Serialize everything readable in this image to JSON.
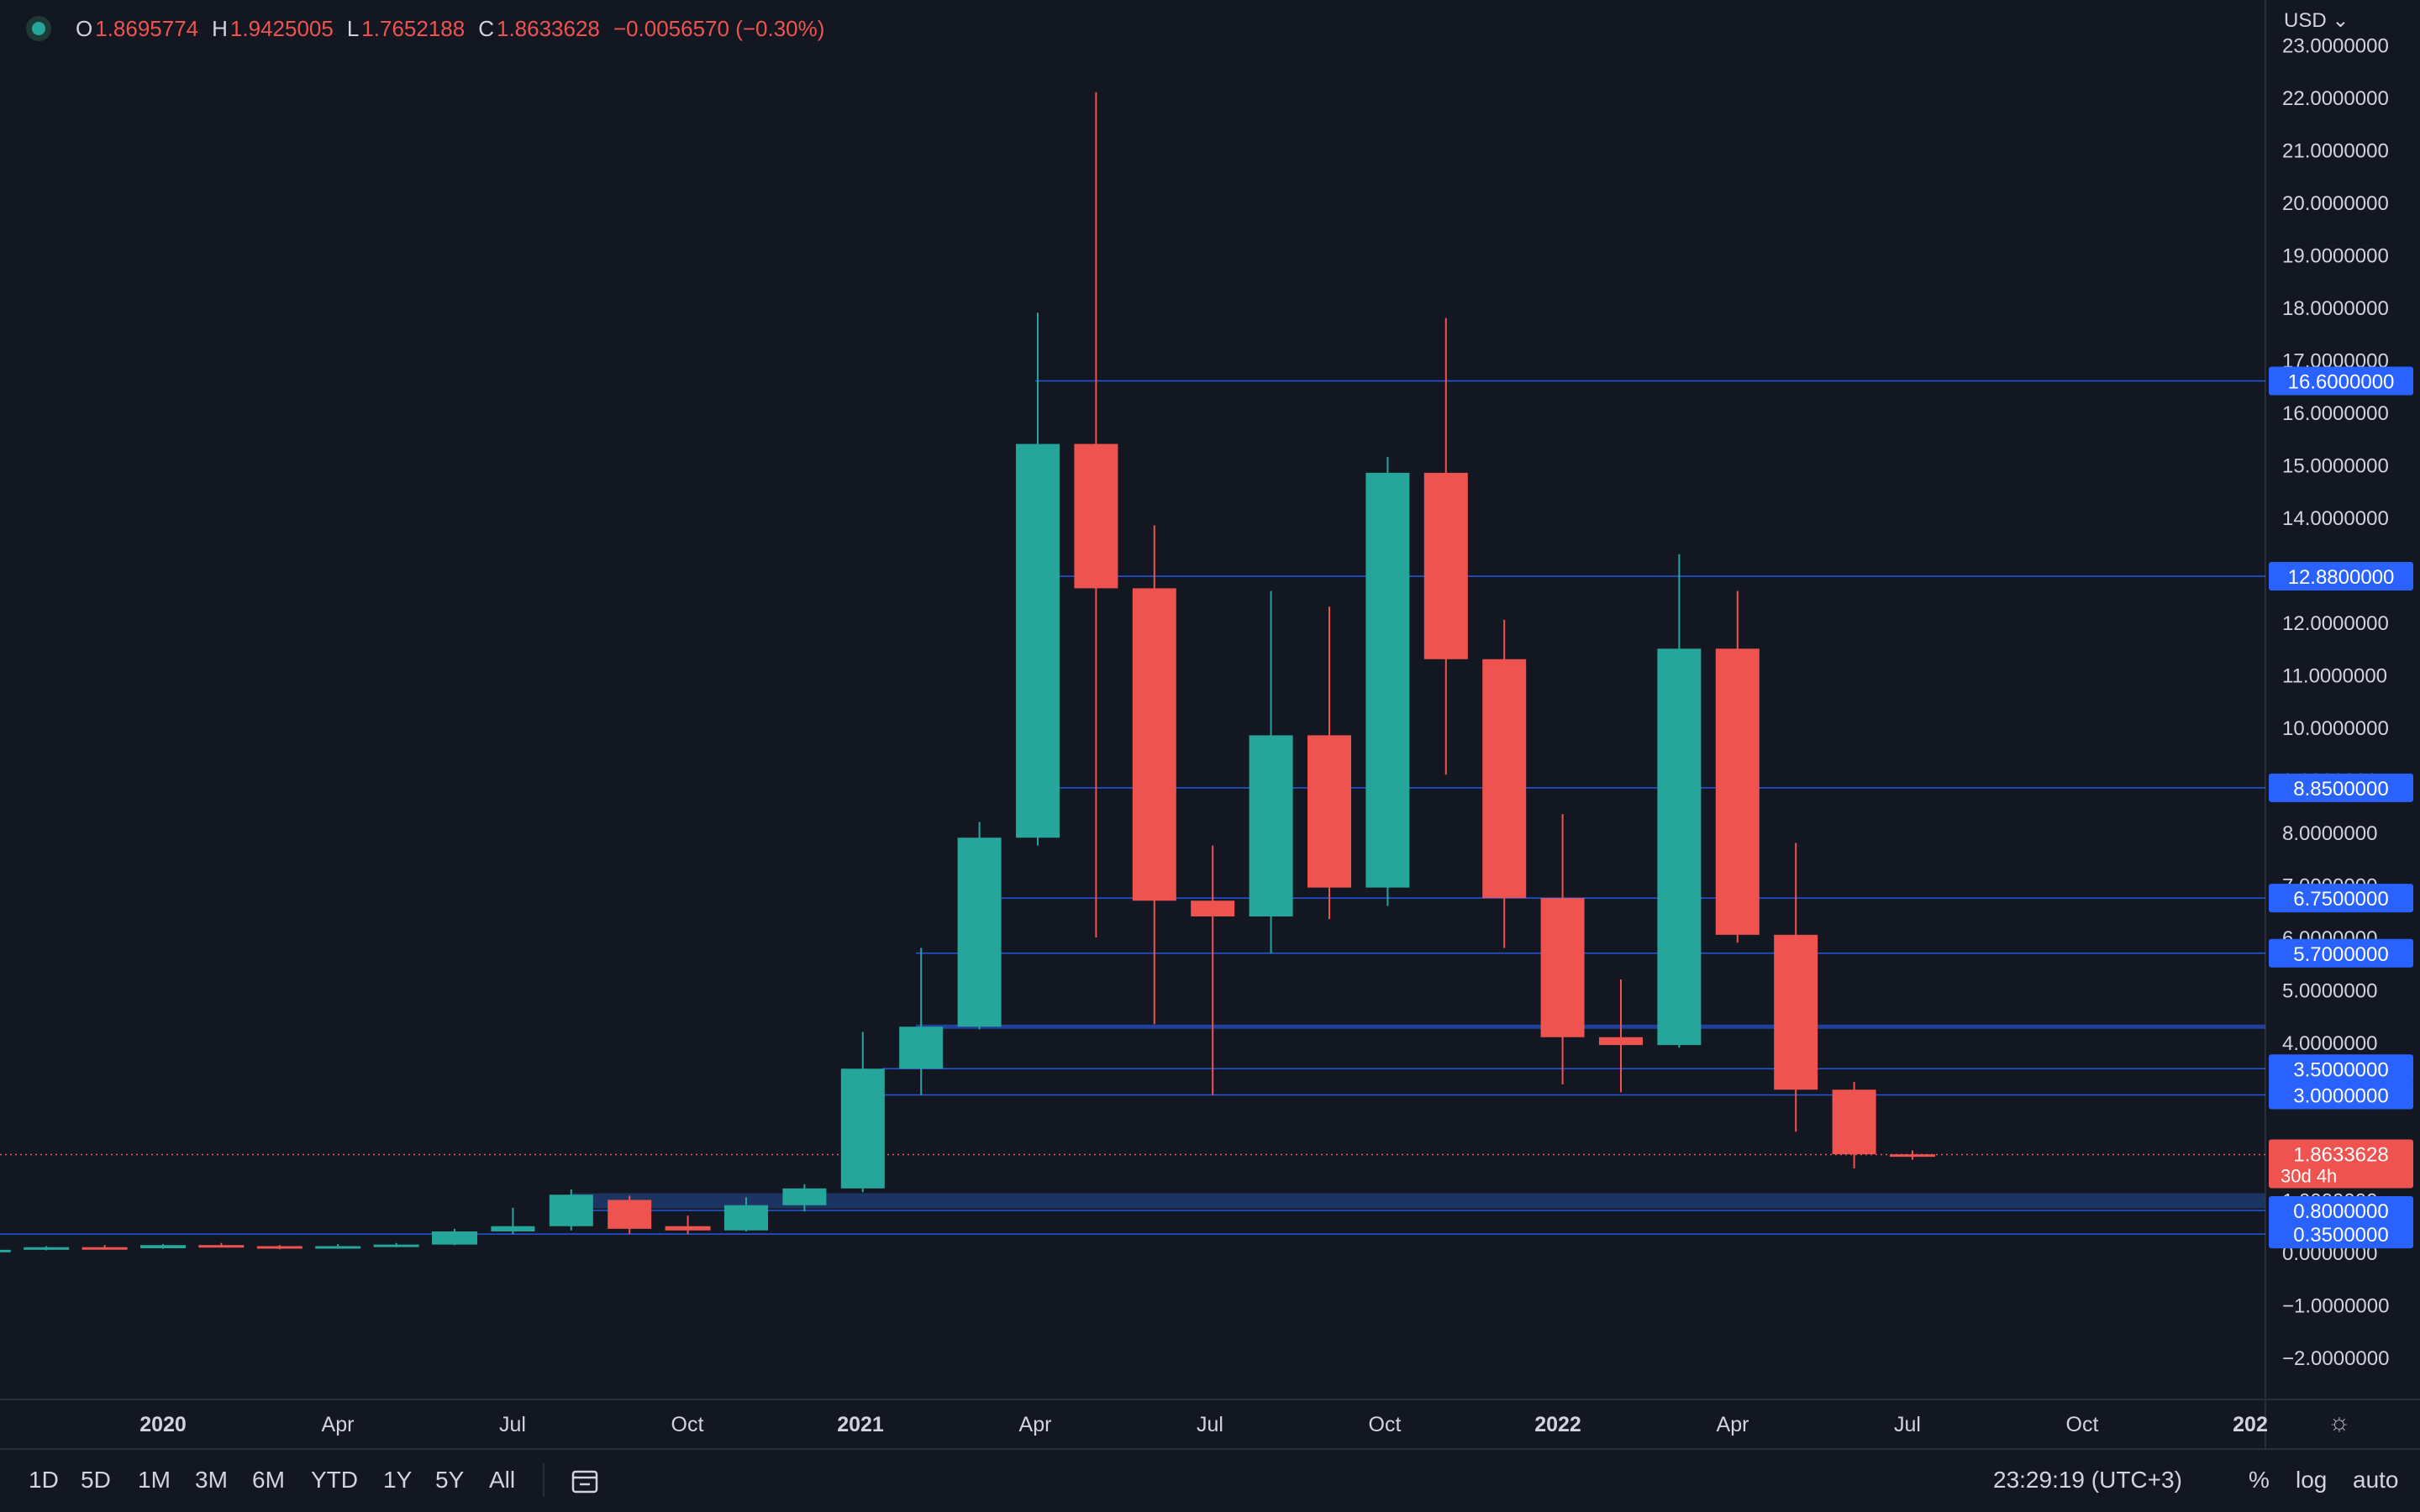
{
  "legend": {
    "open_label": "O",
    "open_value": "1.8695774",
    "high_label": "H",
    "high_value": "1.9425005",
    "low_label": "L",
    "low_value": "1.7652188",
    "close_label": "C",
    "close_value": "1.8633628",
    "change_value": "−0.0056570 (−0.30%)"
  },
  "currency": "USD",
  "toolbar": {
    "timeframes": [
      "1D",
      "5D",
      "1M",
      "3M",
      "6M",
      "YTD",
      "1Y",
      "5Y",
      "All"
    ],
    "clock": "23:29:19 (UTC+3)",
    "options": [
      "%",
      "log",
      "auto"
    ],
    "icons": [
      "calendar-range-icon",
      "settings-gear-icon"
    ]
  },
  "colors": {
    "background": "#131722",
    "up": "#26a69a",
    "down": "#ef5350",
    "level_line": "#2962ff",
    "level_label_bg": "#2962ff",
    "price_label_bg": "#ef5350"
  },
  "chart_data": {
    "type": "candlestick",
    "title": "",
    "timeframe": "monthly",
    "xlabel": "",
    "ylabel": "",
    "x_ticks": [
      "2020",
      "Apr",
      "Jul",
      "Oct",
      "2021",
      "Apr",
      "Jul",
      "Oct",
      "2022",
      "Apr",
      "Jul",
      "Oct",
      "202"
    ],
    "y_ticks": [
      "−2.0000000",
      "−1.0000000",
      "0.0000000",
      "1.0000000",
      "2.0000000",
      "3.0000000",
      "4.0000000",
      "5.0000000",
      "6.0000000",
      "7.0000000",
      "8.0000000",
      "9.0000000",
      "10.0000000",
      "11.0000000",
      "12.0000000",
      "13.0000000",
      "14.0000000",
      "15.0000000",
      "16.0000000",
      "17.0000000",
      "18.0000000",
      "19.0000000",
      "20.0000000",
      "21.0000000",
      "22.0000000",
      "23.0000000"
    ],
    "ylim": [
      -2.9,
      23.5
    ],
    "grid": false,
    "candles": [
      {
        "date": "2019-10",
        "o": 0.03,
        "h": 0.06,
        "l": 0.02,
        "c": 0.05
      },
      {
        "date": "2019-11",
        "o": 0.05,
        "h": 0.12,
        "l": 0.04,
        "c": 0.1
      },
      {
        "date": "2019-12",
        "o": 0.1,
        "h": 0.14,
        "l": 0.07,
        "c": 0.08
      },
      {
        "date": "2020-01",
        "o": 0.08,
        "h": 0.16,
        "l": 0.07,
        "c": 0.14
      },
      {
        "date": "2020-02",
        "o": 0.14,
        "h": 0.18,
        "l": 0.1,
        "c": 0.12
      },
      {
        "date": "2020-03",
        "o": 0.12,
        "h": 0.14,
        "l": 0.06,
        "c": 0.08
      },
      {
        "date": "2020-04",
        "o": 0.08,
        "h": 0.16,
        "l": 0.07,
        "c": 0.12
      },
      {
        "date": "2020-05",
        "o": 0.12,
        "h": 0.18,
        "l": 0.1,
        "c": 0.15
      },
      {
        "date": "2020-06",
        "o": 0.15,
        "h": 0.45,
        "l": 0.14,
        "c": 0.4
      },
      {
        "date": "2020-07",
        "o": 0.4,
        "h": 0.85,
        "l": 0.35,
        "c": 0.5
      },
      {
        "date": "2020-08",
        "o": 0.5,
        "h": 1.2,
        "l": 0.42,
        "c": 1.1
      },
      {
        "date": "2020-09",
        "o": 1.0,
        "h": 1.08,
        "l": 0.35,
        "c": 0.45
      },
      {
        "date": "2020-10",
        "o": 0.5,
        "h": 0.7,
        "l": 0.35,
        "c": 0.42
      },
      {
        "date": "2020-11",
        "o": 0.42,
        "h": 1.05,
        "l": 0.4,
        "c": 0.9
      },
      {
        "date": "2020-12",
        "o": 0.9,
        "h": 1.3,
        "l": 0.78,
        "c": 1.22
      },
      {
        "date": "2021-01",
        "o": 1.22,
        "h": 4.2,
        "l": 1.15,
        "c": 3.5
      },
      {
        "date": "2021-02",
        "o": 3.5,
        "h": 5.8,
        "l": 3.0,
        "c": 4.3
      },
      {
        "date": "2021-03",
        "o": 4.3,
        "h": 8.2,
        "l": 4.25,
        "c": 7.9
      },
      {
        "date": "2021-04",
        "o": 7.9,
        "h": 17.9,
        "l": 7.75,
        "c": 15.4
      },
      {
        "date": "2021-05",
        "o": 15.4,
        "h": 22.1,
        "l": 6.0,
        "c": 12.65
      },
      {
        "date": "2021-06",
        "o": 12.65,
        "h": 13.85,
        "l": 4.35,
        "c": 6.7
      },
      {
        "date": "2021-07",
        "o": 6.7,
        "h": 7.75,
        "l": 3.0,
        "c": 6.4
      },
      {
        "date": "2021-08",
        "o": 6.4,
        "h": 12.6,
        "l": 5.7,
        "c": 9.85
      },
      {
        "date": "2021-09",
        "o": 9.85,
        "h": 12.3,
        "l": 6.35,
        "c": 6.95
      },
      {
        "date": "2021-10",
        "o": 6.95,
        "h": 15.15,
        "l": 6.6,
        "c": 14.85
      },
      {
        "date": "2021-11",
        "o": 14.85,
        "h": 17.8,
        "l": 9.1,
        "c": 11.3
      },
      {
        "date": "2021-12",
        "o": 11.3,
        "h": 12.05,
        "l": 5.8,
        "c": 6.75
      },
      {
        "date": "2022-01",
        "o": 6.75,
        "h": 8.35,
        "l": 3.2,
        "c": 4.1
      },
      {
        "date": "2022-02",
        "o": 4.1,
        "h": 5.2,
        "l": 3.05,
        "c": 3.95
      },
      {
        "date": "2022-03",
        "o": 3.95,
        "h": 13.3,
        "l": 3.9,
        "c": 11.5
      },
      {
        "date": "2022-04",
        "o": 11.5,
        "h": 12.6,
        "l": 5.9,
        "c": 6.05
      },
      {
        "date": "2022-05",
        "o": 6.05,
        "h": 7.8,
        "l": 2.3,
        "c": 3.1
      },
      {
        "date": "2022-06",
        "o": 3.1,
        "h": 3.25,
        "l": 1.6,
        "c": 1.87
      },
      {
        "date": "2022-07",
        "o": 1.8695774,
        "h": 1.9425005,
        "l": 1.7652188,
        "c": 1.8633628
      }
    ],
    "levels": [
      16.6,
      12.88,
      8.85,
      6.75,
      5.7,
      4.3,
      3.5,
      3.0,
      1.0,
      0.8,
      0.35
    ],
    "level_labels": [
      "16.6000000",
      "12.8800000",
      "8.8500000",
      "6.7500000",
      "5.7000000",
      "3.5000000",
      "3.0000000",
      "0.8000000",
      "0.3500000"
    ],
    "last_price": "1.8633628",
    "countdown": "30d 4h"
  }
}
